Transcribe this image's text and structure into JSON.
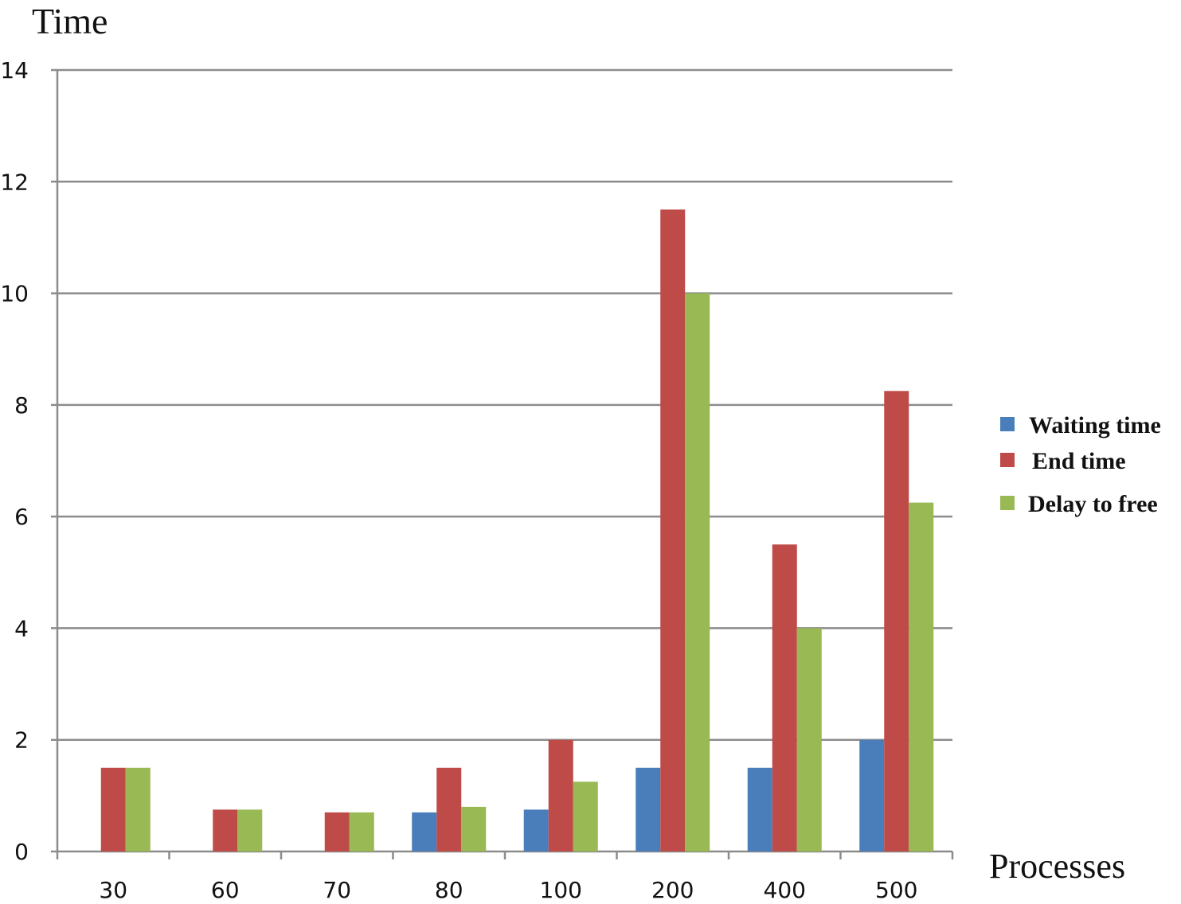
{
  "chart_data": {
    "type": "bar",
    "title": "",
    "ylabel": "Time",
    "xlabel": "Processes",
    "categories": [
      "30",
      "60",
      "70",
      "80",
      "100",
      "200",
      "400",
      "500"
    ],
    "ylim": [
      0,
      14
    ],
    "yticks": [
      0,
      2,
      4,
      6,
      8,
      10,
      12,
      14
    ],
    "grid": true,
    "legend_position": "right",
    "series": [
      {
        "name": "Waiting time",
        "color": "#4a7ebb",
        "values": [
          0,
          0,
          0,
          0.7,
          0.75,
          1.5,
          1.5,
          2
        ]
      },
      {
        "name": "End time",
        "color": "#be4b48",
        "values": [
          1.5,
          0.75,
          0.7,
          1.5,
          2,
          11.5,
          5.5,
          8.25
        ]
      },
      {
        "name": "Delay to free",
        "color": "#98b954",
        "values": [
          1.5,
          0.75,
          0.7,
          0.8,
          1.25,
          10,
          4,
          6.25
        ]
      }
    ]
  }
}
